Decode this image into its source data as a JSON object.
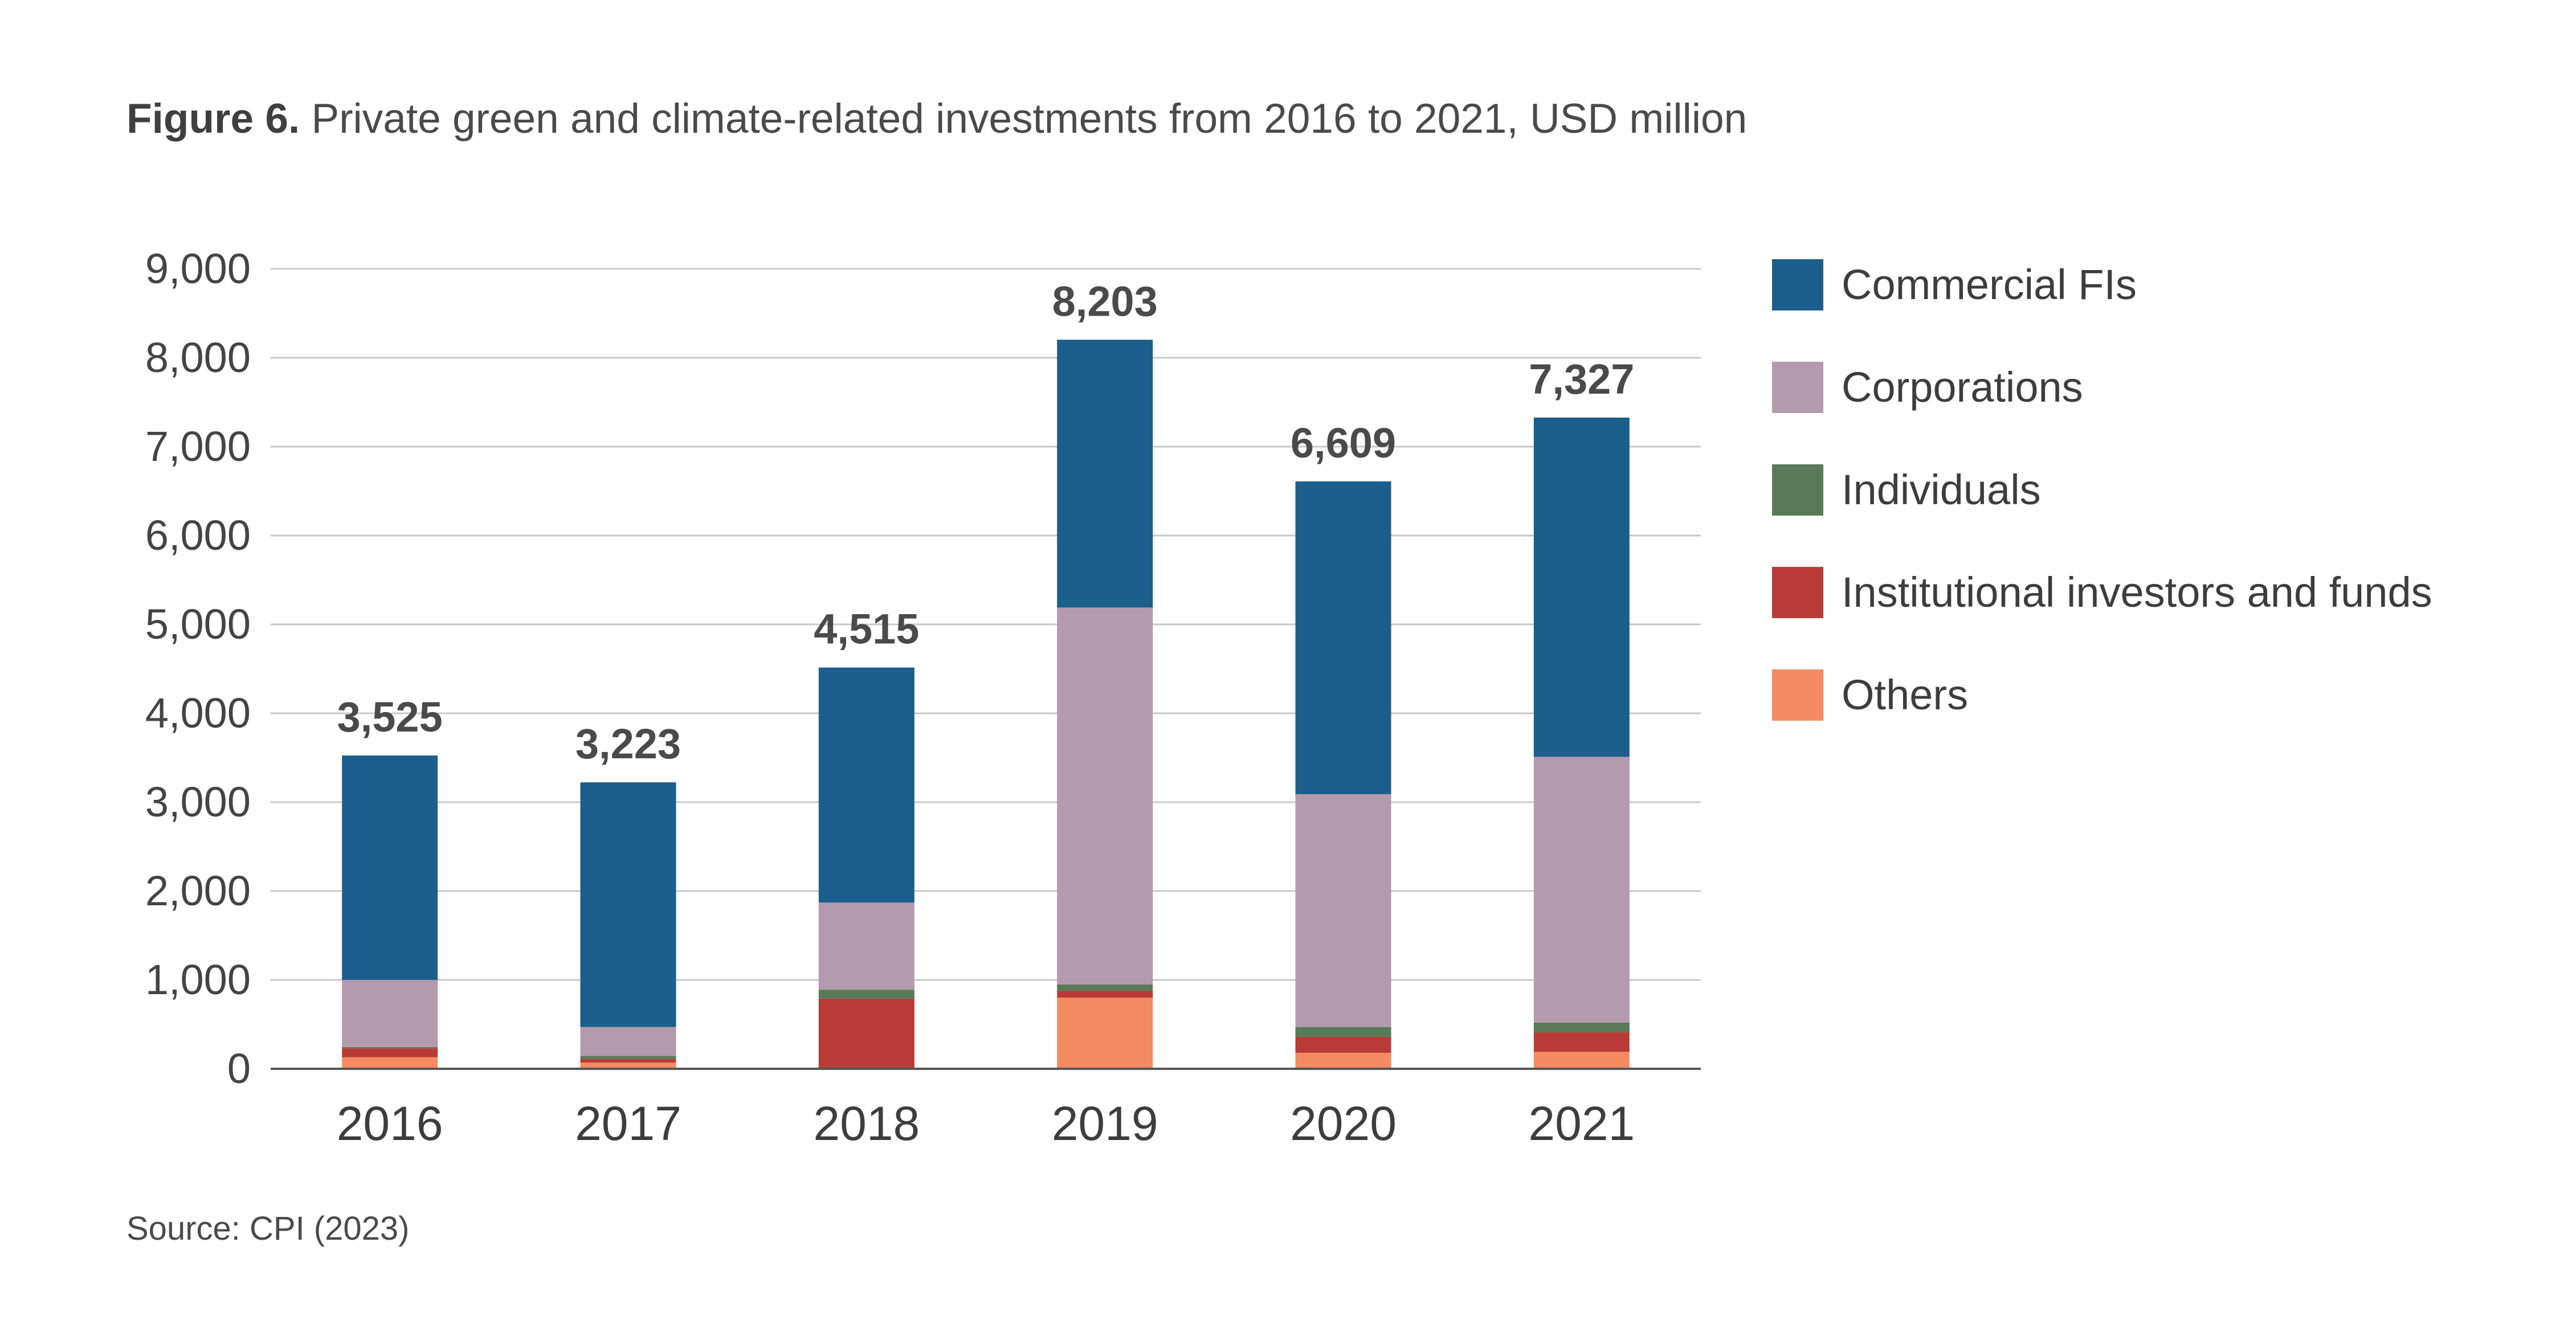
{
  "figure": {
    "label": "Figure 6.",
    "title": "Private green and climate-related investments from 2016 to 2021, USD million",
    "source": "Source: CPI (2023)"
  },
  "chart_data": {
    "type": "bar",
    "stacked": true,
    "categories": [
      "2016",
      "2017",
      "2018",
      "2019",
      "2020",
      "2021"
    ],
    "totals": [
      "3,525",
      "3,223",
      "4,515",
      "8,203",
      "6,609",
      "7,327"
    ],
    "ylim": [
      0,
      9000
    ],
    "y_ticks": [
      0,
      1000,
      2000,
      3000,
      4000,
      5000,
      6000,
      7000,
      8000,
      9000
    ],
    "y_tick_labels": [
      "0",
      "1,000",
      "2,000",
      "3,000",
      "4,000",
      "5,000",
      "6,000",
      "7,000",
      "8,000",
      "9,000"
    ],
    "grid": true,
    "legend_position": "right",
    "series": [
      {
        "name": "Others",
        "color": "#f58b61",
        "values": [
          130,
          70,
          0,
          800,
          180,
          190
        ]
      },
      {
        "name": "Institutional investors and funds",
        "color": "#b83b38",
        "values": [
          100,
          40,
          790,
          80,
          180,
          220
        ]
      },
      {
        "name": "Individuals",
        "color": "#587a57",
        "values": [
          15,
          35,
          100,
          70,
          110,
          110
        ]
      },
      {
        "name": "Corporations",
        "color": "#b39aac",
        "values": [
          755,
          325,
          980,
          4240,
          2620,
          2990
        ]
      },
      {
        "name": "Commercial FIs",
        "color": "#1c5e8c",
        "values": [
          2525,
          2753,
          2645,
          3013,
          3519,
          3817
        ]
      }
    ],
    "legend_order": [
      "Commercial FIs",
      "Corporations",
      "Individuals",
      "Institutional investors and funds",
      "Others"
    ]
  }
}
